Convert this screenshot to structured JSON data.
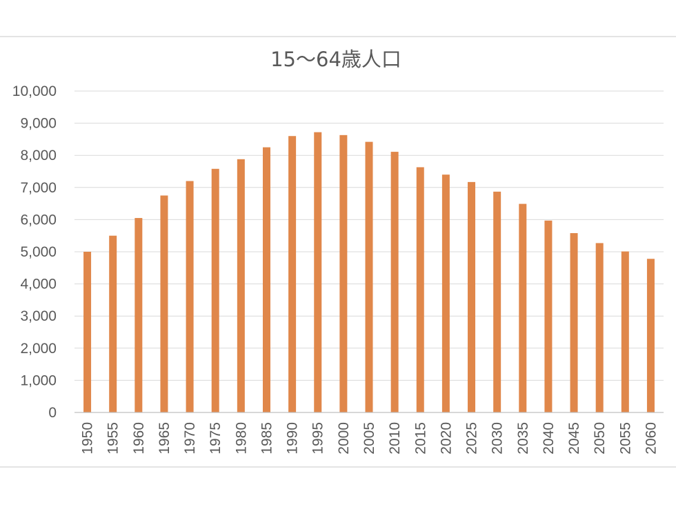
{
  "chart_data": {
    "type": "bar",
    "title": "15〜64歳人口",
    "xlabel": "",
    "ylabel": "",
    "ylim": [
      0,
      10000
    ],
    "yticks": [
      0,
      1000,
      2000,
      3000,
      4000,
      5000,
      6000,
      7000,
      8000,
      9000,
      10000
    ],
    "ytick_labels": [
      "0",
      "1,000",
      "2,000",
      "3,000",
      "4,000",
      "5,000",
      "6,000",
      "7,000",
      "8,000",
      "9,000",
      "10,000"
    ],
    "grid": true,
    "legend": "none",
    "bar_color": "#e0874a",
    "categories": [
      "1950",
      "1955",
      "1960",
      "1965",
      "1970",
      "1975",
      "1980",
      "1985",
      "1990",
      "1995",
      "2000",
      "2005",
      "2010",
      "2015",
      "2020",
      "2025",
      "2030",
      "2035",
      "2040",
      "2045",
      "2050",
      "2055",
      "2060"
    ],
    "values": [
      5000,
      5500,
      6050,
      6750,
      7200,
      7580,
      7880,
      8250,
      8600,
      8720,
      8630,
      8420,
      8110,
      7630,
      7400,
      7170,
      6870,
      6490,
      5970,
      5580,
      5270,
      5010,
      4780
    ]
  }
}
